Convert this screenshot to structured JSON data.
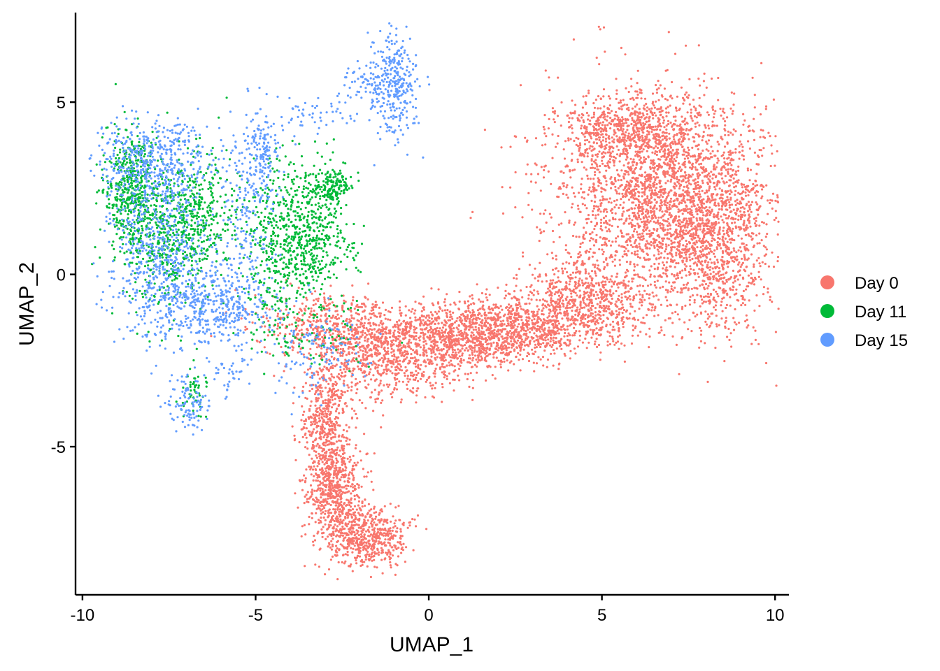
{
  "chart_data": {
    "type": "scatter",
    "title": "",
    "xlabel": "UMAP_1",
    "ylabel": "UMAP_2",
    "xlim": [
      -10.2,
      10.4
    ],
    "ylim": [
      -9.3,
      7.6
    ],
    "xticks": [
      {
        "value": -10,
        "label": "-10"
      },
      {
        "value": -5,
        "label": "-5"
      },
      {
        "value": 0,
        "label": "0"
      },
      {
        "value": 5,
        "label": "5"
      },
      {
        "value": 10,
        "label": "10"
      }
    ],
    "yticks": [
      {
        "value": -5,
        "label": "-5"
      },
      {
        "value": 0,
        "label": "0"
      },
      {
        "value": 5,
        "label": "5"
      }
    ],
    "grid": false,
    "legend_position": "right",
    "series": [
      {
        "name": "Day 0",
        "color": "#F8766D",
        "clusters": [
          {
            "cx": 6.8,
            "cy": 2.2,
            "sx": 1.6,
            "sy": 1.5,
            "n": 2600
          },
          {
            "cx": 8.3,
            "cy": 0.8,
            "sx": 0.8,
            "sy": 1.3,
            "n": 700
          },
          {
            "cx": 5.8,
            "cy": 4.2,
            "sx": 1.0,
            "sy": 0.5,
            "n": 600
          },
          {
            "cx": 4.5,
            "cy": -0.8,
            "sx": 1.0,
            "sy": 0.6,
            "n": 700
          },
          {
            "cx": 2.5,
            "cy": -1.6,
            "sx": 1.1,
            "sy": 0.45,
            "n": 800
          },
          {
            "cx": 0.5,
            "cy": -1.9,
            "sx": 1.0,
            "sy": 0.55,
            "n": 800
          },
          {
            "cx": -1.5,
            "cy": -2.3,
            "sx": 0.9,
            "sy": 0.7,
            "n": 700
          },
          {
            "cx": -3.2,
            "cy": -1.5,
            "sx": 1.0,
            "sy": 0.5,
            "n": 350
          },
          {
            "cx": -3.0,
            "cy": -4.2,
            "sx": 0.35,
            "sy": 0.8,
            "n": 450
          },
          {
            "cx": -2.7,
            "cy": -6.2,
            "sx": 0.4,
            "sy": 0.8,
            "n": 650
          },
          {
            "cx": -1.8,
            "cy": -7.6,
            "sx": 0.55,
            "sy": 0.45,
            "n": 550
          }
        ]
      },
      {
        "name": "Day 11",
        "color": "#00BA38",
        "clusters": [
          {
            "cx": -8.6,
            "cy": 2.6,
            "sx": 0.4,
            "sy": 0.8,
            "n": 450
          },
          {
            "cx": -7.6,
            "cy": 1.2,
            "sx": 0.7,
            "sy": 1.0,
            "n": 500
          },
          {
            "cx": -6.5,
            "cy": 1.8,
            "sx": 0.5,
            "sy": 0.8,
            "n": 250
          },
          {
            "cx": -4.4,
            "cy": 1.0,
            "sx": 0.5,
            "sy": 1.2,
            "n": 350
          },
          {
            "cx": -3.3,
            "cy": 1.2,
            "sx": 0.5,
            "sy": 1.0,
            "n": 450
          },
          {
            "cx": -2.7,
            "cy": 2.6,
            "sx": 0.25,
            "sy": 0.25,
            "n": 120
          },
          {
            "cx": -6.8,
            "cy": -3.4,
            "sx": 0.2,
            "sy": 0.4,
            "n": 50
          },
          {
            "cx": -3.5,
            "cy": -1.6,
            "sx": 0.9,
            "sy": 0.5,
            "n": 100
          }
        ]
      },
      {
        "name": "Day 15",
        "color": "#619CFF",
        "clusters": [
          {
            "cx": -8.0,
            "cy": 3.3,
            "sx": 0.9,
            "sy": 0.6,
            "n": 500
          },
          {
            "cx": -7.8,
            "cy": 0.6,
            "sx": 0.8,
            "sy": 1.2,
            "n": 600
          },
          {
            "cx": -6.2,
            "cy": -0.9,
            "sx": 0.9,
            "sy": 0.6,
            "n": 450
          },
          {
            "cx": -5.2,
            "cy": 2.0,
            "sx": 0.4,
            "sy": 1.4,
            "n": 180
          },
          {
            "cx": -4.8,
            "cy": 3.5,
            "sx": 0.25,
            "sy": 0.5,
            "n": 120
          },
          {
            "cx": -3.3,
            "cy": 4.7,
            "sx": 0.8,
            "sy": 0.3,
            "n": 60
          },
          {
            "cx": -1.6,
            "cy": 5.6,
            "sx": 0.5,
            "sy": 0.3,
            "n": 90
          },
          {
            "cx": -1.0,
            "cy": 5.6,
            "sx": 0.3,
            "sy": 0.9,
            "n": 280
          },
          {
            "cx": -6.9,
            "cy": -3.8,
            "sx": 0.35,
            "sy": 0.45,
            "n": 100
          },
          {
            "cx": -5.7,
            "cy": -2.8,
            "sx": 0.3,
            "sy": 0.4,
            "n": 40
          },
          {
            "cx": -3.2,
            "cy": -2.2,
            "sx": 0.7,
            "sy": 0.6,
            "n": 120
          }
        ]
      }
    ]
  }
}
